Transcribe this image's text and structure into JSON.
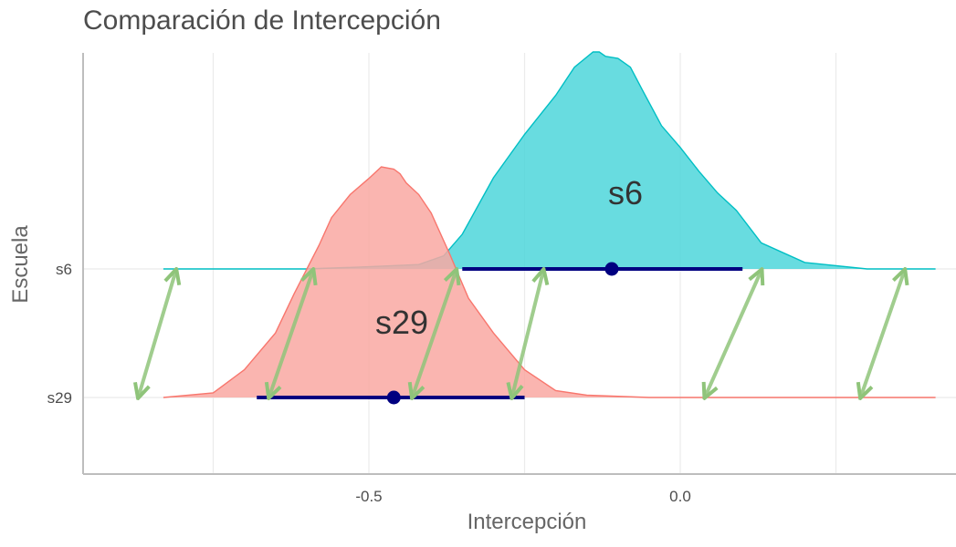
{
  "chart_data": {
    "type": "density_ridgeline",
    "title": "Comparación de Intercepción",
    "xlabel": "Intercepción",
    "ylabel": "Escuela",
    "x_ticks": [
      -0.5,
      0.0
    ],
    "x_tick_labels": [
      "-0.5",
      "0.0"
    ],
    "xlim": [
      -0.95,
      0.43
    ],
    "categories": [
      "s29",
      "s6"
    ],
    "grid": "vertical",
    "series": [
      {
        "name": "s6",
        "color": "#00BFC4",
        "fill": "#4DD6DB",
        "point_estimate": -0.11,
        "interval": [
          -0.35,
          0.1
        ],
        "density_x": [
          -0.83,
          -0.6,
          -0.5,
          -0.42,
          -0.38,
          -0.35,
          -0.3,
          -0.25,
          -0.2,
          -0.17,
          -0.14,
          -0.13,
          -0.12,
          -0.1,
          -0.08,
          -0.06,
          -0.03,
          0.0,
          0.03,
          0.06,
          0.09,
          0.13,
          0.2,
          0.3,
          0.41
        ],
        "density_y": [
          0.0,
          0.0,
          0.01,
          0.02,
          0.06,
          0.16,
          0.42,
          0.62,
          0.8,
          0.93,
          1.0,
          1.0,
          0.98,
          0.97,
          0.93,
          0.82,
          0.66,
          0.56,
          0.45,
          0.35,
          0.27,
          0.12,
          0.03,
          0.0,
          0.0
        ]
      },
      {
        "name": "s29",
        "color": "#F8766D",
        "fill": "#F9A8A2",
        "point_estimate": -0.46,
        "interval": [
          -0.68,
          -0.25
        ],
        "density_x": [
          -0.83,
          -0.75,
          -0.7,
          -0.65,
          -0.62,
          -0.58,
          -0.56,
          -0.53,
          -0.5,
          -0.48,
          -0.46,
          -0.45,
          -0.44,
          -0.42,
          -0.4,
          -0.37,
          -0.34,
          -0.3,
          -0.25,
          -0.2,
          -0.15,
          -0.05,
          0.1,
          0.41
        ],
        "density_y": [
          0.0,
          0.02,
          0.12,
          0.28,
          0.45,
          0.66,
          0.78,
          0.88,
          0.95,
          1.0,
          0.99,
          0.97,
          0.93,
          0.88,
          0.8,
          0.62,
          0.43,
          0.28,
          0.12,
          0.03,
          0.01,
          0.0,
          0.0,
          0.0
        ]
      }
    ],
    "arrows": [
      {
        "from_x": -0.81,
        "to_x": -0.87
      },
      {
        "from_x": -0.59,
        "to_x": -0.66
      },
      {
        "from_x": -0.36,
        "to_x": -0.43
      },
      {
        "from_x": -0.22,
        "to_x": -0.27
      },
      {
        "from_x": 0.13,
        "to_x": 0.04
      },
      {
        "from_x": 0.36,
        "to_x": 0.29
      }
    ],
    "arrow_color": "#8FC47A",
    "interval_color": "#000080"
  }
}
